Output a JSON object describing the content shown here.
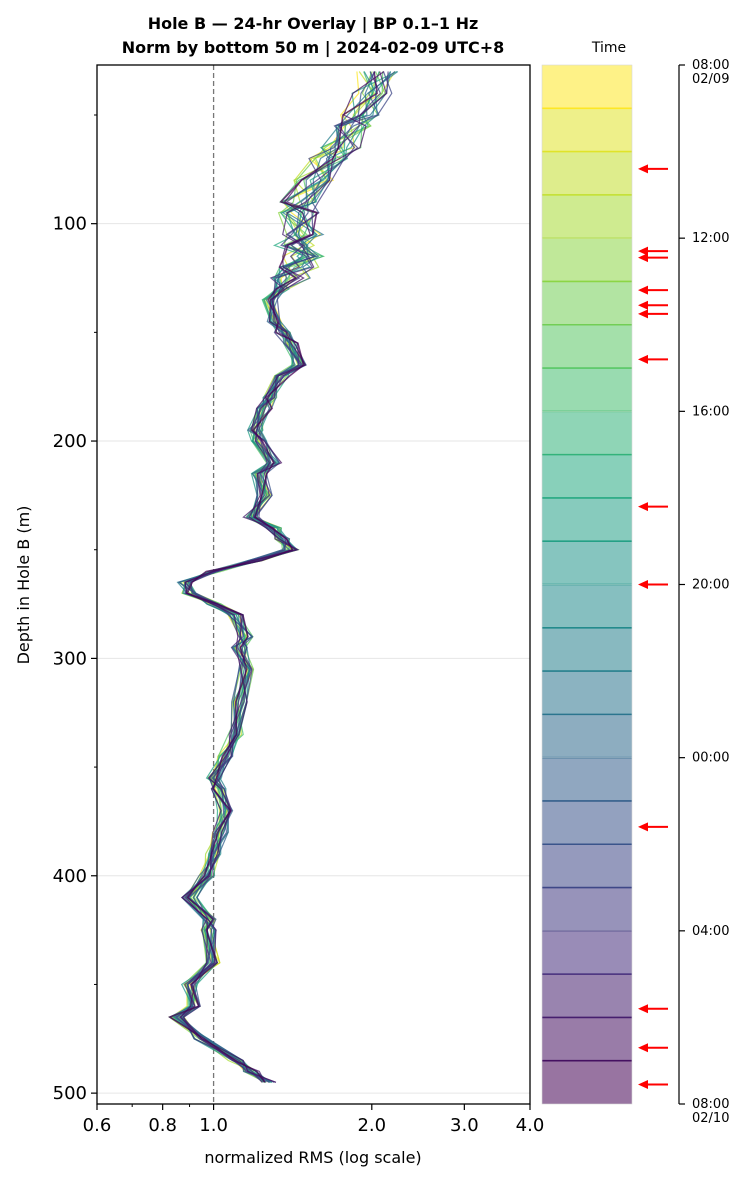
{
  "chart_data": {
    "type": "line",
    "title": "Hole B — 24-hr Overlay  |  BP 0.1–1 Hz",
    "subtitle": "Norm by bottom 50 m  |  2024-02-09 UTC+8",
    "xlabel": "normalized RMS  (log scale)",
    "ylabel": "Depth in Hole B (m)",
    "x_scale": "log",
    "xlim": [
      0.6,
      4.0
    ],
    "ylim": [
      505,
      27
    ],
    "x_ticks": [
      "0.6",
      "0.8",
      "1.0",
      "2.0",
      "3.0",
      "4.0"
    ],
    "x_tick_values": [
      0.6,
      0.8,
      1.0,
      2.0,
      3.0,
      4.0
    ],
    "y_ticks": [
      "100",
      "200",
      "300",
      "400",
      "500"
    ],
    "y_tick_values": [
      100,
      200,
      300,
      400,
      500
    ],
    "reference_line": {
      "x": 1.0,
      "style": "dashed"
    },
    "grid": "horizontal",
    "series_count": 24,
    "profile": {
      "depth": [
        30,
        40,
        50,
        55,
        65,
        70,
        80,
        90,
        95,
        105,
        110,
        115,
        120,
        125,
        130,
        135,
        145,
        150,
        155,
        165,
        170,
        180,
        185,
        195,
        200,
        210,
        215,
        225,
        235,
        240,
        245,
        250,
        255,
        260,
        265,
        270,
        275,
        280,
        290,
        295,
        305,
        320,
        335,
        345,
        355,
        360,
        370,
        380,
        390,
        400,
        410,
        420,
        425,
        440,
        450,
        460,
        465,
        475,
        485,
        490,
        495
      ],
      "rms": [
        2.05,
        2.0,
        1.9,
        1.85,
        1.75,
        1.65,
        1.55,
        1.45,
        1.45,
        1.48,
        1.42,
        1.48,
        1.45,
        1.4,
        1.35,
        1.28,
        1.3,
        1.35,
        1.4,
        1.45,
        1.35,
        1.28,
        1.25,
        1.2,
        1.22,
        1.3,
        1.22,
        1.25,
        1.18,
        1.3,
        1.35,
        1.4,
        1.2,
        1.0,
        0.88,
        0.9,
        1.0,
        1.1,
        1.15,
        1.12,
        1.15,
        1.12,
        1.1,
        1.05,
        1.0,
        1.02,
        1.05,
        1.03,
        1.0,
        0.97,
        0.9,
        0.98,
        0.98,
        1.0,
        0.9,
        0.92,
        0.85,
        0.95,
        1.1,
        1.18,
        1.28
      ]
    },
    "colorbar": {
      "label": "Time",
      "ticks": [
        {
          "label": "08:00",
          "sublabel": "02/09",
          "hour": 0
        },
        {
          "label": "12:00",
          "hour": 4
        },
        {
          "label": "16:00",
          "hour": 8
        },
        {
          "label": "20:00",
          "hour": 12
        },
        {
          "label": "00:00",
          "hour": 16
        },
        {
          "label": "04:00",
          "hour": 20
        },
        {
          "label": "08:00",
          "sublabel": "02/10",
          "hour": 24
        }
      ],
      "bands": 24,
      "colors": [
        "#440154",
        "#472c7a",
        "#3b518b",
        "#2c718e",
        "#21918c",
        "#27ad81",
        "#5ec962",
        "#aadc32",
        "#fde725"
      ]
    },
    "event_arrows_hours": [
      2.4,
      4.3,
      4.45,
      5.2,
      5.55,
      5.75,
      6.8,
      10.2,
      12.0,
      17.6,
      21.8,
      22.7,
      23.55
    ],
    "arrow_color": "#ff0000"
  }
}
